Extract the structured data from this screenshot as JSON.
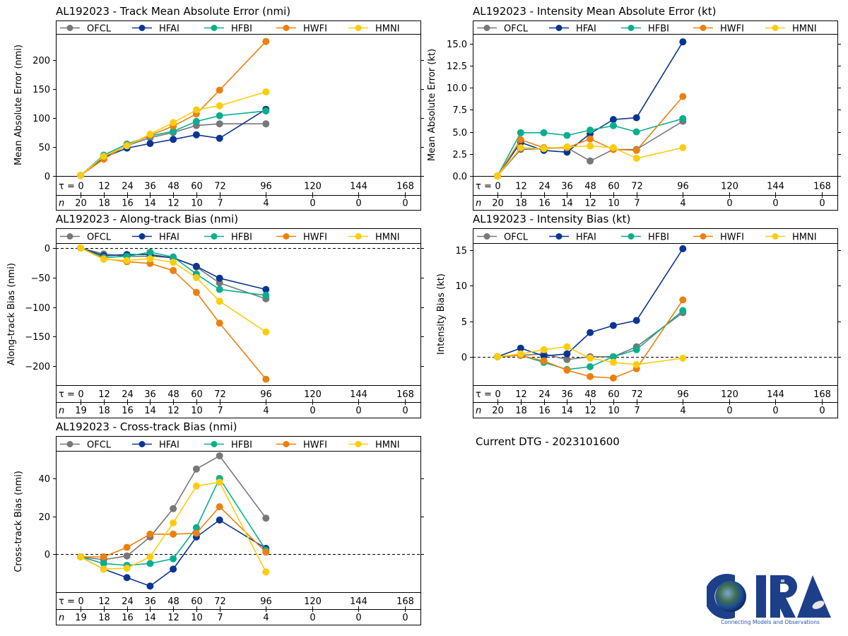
{
  "figure": {
    "current_dtg_label": "Current DTG - 2023101600",
    "logo": {
      "text": "CIRA",
      "tagline": "Connecting Models and Observations"
    }
  },
  "models": [
    {
      "name": "OFCL",
      "color": "#777777"
    },
    {
      "name": "HFAI",
      "color": "#0a3591"
    },
    {
      "name": "HFBI",
      "color": "#0aae8e"
    },
    {
      "name": "HWFI",
      "color": "#ec800f"
    },
    {
      "name": "HMNI",
      "color": "#fccd0f"
    }
  ],
  "chart_data": [
    {
      "id": "track-mae",
      "type": "line",
      "title": "AL192023 - Track Mean Absolute Error (nmi)",
      "xlabel": "τ",
      "ylabel": "Mean Absolute Error (nmi)",
      "x": [
        0,
        12,
        24,
        36,
        48,
        60,
        72,
        96
      ],
      "x_ticks": [
        0,
        12,
        24,
        36,
        48,
        60,
        72,
        96,
        120,
        144,
        168
      ],
      "n_row": [
        "20",
        "18",
        "16",
        "14",
        "12",
        "10",
        "7",
        "4",
        "0",
        "0",
        "0"
      ],
      "y_ticks": [
        0,
        50,
        100,
        150,
        200
      ],
      "y_tick_labels": [
        "0",
        "50",
        "100",
        "150",
        "200"
      ],
      "ylim": [
        0,
        245
      ],
      "zero_line": false,
      "legend": "top",
      "series": [
        {
          "name": "OFCL",
          "values": [
            1,
            33,
            52,
            66,
            75,
            87,
            90,
            90
          ]
        },
        {
          "name": "HFAI",
          "values": [
            1,
            32,
            48,
            56,
            63,
            71,
            65,
            115
          ]
        },
        {
          "name": "HFBI",
          "values": [
            1,
            36,
            55,
            69,
            77,
            94,
            104,
            112
          ]
        },
        {
          "name": "HWFI",
          "values": [
            1,
            29,
            53,
            70,
            86,
            107,
            148,
            232
          ]
        },
        {
          "name": "HMNI",
          "values": [
            1,
            34,
            52,
            72,
            92,
            114,
            121,
            145
          ]
        }
      ]
    },
    {
      "id": "intensity-mae",
      "type": "line",
      "title": "AL192023 - Intensity Mean Absolute Error (kt)",
      "xlabel": "τ",
      "ylabel": "Mean Absolute Error (kt)",
      "x": [
        0,
        12,
        24,
        36,
        48,
        60,
        72,
        96
      ],
      "x_ticks": [
        0,
        12,
        24,
        36,
        48,
        60,
        72,
        96,
        120,
        144,
        168
      ],
      "n_row": [
        "20",
        "18",
        "16",
        "14",
        "12",
        "10",
        "7",
        "4",
        "0",
        "0",
        "0"
      ],
      "y_ticks": [
        0,
        2.5,
        5,
        7.5,
        10,
        12.5,
        15
      ],
      "y_tick_labels": [
        "0.0",
        "2.5",
        "5.0",
        "7.5",
        "10.0",
        "12.5",
        "15.0"
      ],
      "ylim": [
        0,
        16.1
      ],
      "zero_line": false,
      "legend": "top",
      "series": [
        {
          "name": "OFCL",
          "values": [
            0,
            3.0,
            3.1,
            3.2,
            1.7,
            3.0,
            3.0,
            6.2
          ]
        },
        {
          "name": "HFAI",
          "values": [
            0,
            3.8,
            2.9,
            2.7,
            4.8,
            6.4,
            6.6,
            15.2
          ]
        },
        {
          "name": "HFBI",
          "values": [
            0,
            4.9,
            4.9,
            4.6,
            5.2,
            5.7,
            5.0,
            6.5
          ]
        },
        {
          "name": "HWFI",
          "values": [
            0,
            4.1,
            3.2,
            3.2,
            4.2,
            3.0,
            2.9,
            9.0
          ]
        },
        {
          "name": "HMNI",
          "values": [
            0,
            3.2,
            3.1,
            3.3,
            3.4,
            3.2,
            2.0,
            3.2
          ]
        }
      ]
    },
    {
      "id": "along-track-bias",
      "type": "line",
      "title": "AL192023 - Along-track Bias (nmi)",
      "xlabel": "τ",
      "ylabel": "Along-track Bias (nmi)",
      "x": [
        0,
        12,
        24,
        36,
        48,
        60,
        72,
        96
      ],
      "x_ticks": [
        0,
        12,
        24,
        36,
        48,
        60,
        72,
        96,
        120,
        144,
        168
      ],
      "n_row": [
        "19",
        "18",
        "16",
        "14",
        "12",
        "10",
        "7",
        "4",
        "0",
        "0",
        "0"
      ],
      "y_ticks": [
        -200,
        -150,
        -100,
        -50,
        0
      ],
      "y_tick_labels": [
        "−200",
        "−150",
        "−100",
        "−50",
        "0"
      ],
      "ylim": [
        -232,
        8.4
      ],
      "zero_line": true,
      "legend": "top",
      "series": [
        {
          "name": "OFCL",
          "values": [
            0,
            -10,
            -14,
            -14,
            -16,
            -32,
            -59,
            -86
          ]
        },
        {
          "name": "HFAI",
          "values": [
            0,
            -13,
            -11,
            -11,
            -17,
            -31,
            -51,
            -70
          ]
        },
        {
          "name": "HFBI",
          "values": [
            0,
            -16,
            -14,
            -7,
            -15,
            -44,
            -70,
            -80
          ]
        },
        {
          "name": "HWFI",
          "values": [
            0,
            -18,
            -23,
            -26,
            -38,
            -75,
            -127,
            -222
          ]
        },
        {
          "name": "HMNI",
          "values": [
            0,
            -19,
            -21,
            -18,
            -24,
            -50,
            -90,
            -142
          ]
        }
      ]
    },
    {
      "id": "intensity-bias",
      "type": "line",
      "title": "AL192023 - Intensity Bias (kt)",
      "xlabel": "τ",
      "ylabel": "Intensity Bias (kt)",
      "x": [
        0,
        12,
        24,
        36,
        48,
        60,
        72,
        96
      ],
      "x_ticks": [
        0,
        12,
        24,
        36,
        48,
        60,
        72,
        96,
        120,
        144,
        168
      ],
      "n_row": [
        "20",
        "18",
        "16",
        "14",
        "12",
        "10",
        "7",
        "4",
        "0",
        "0",
        "0"
      ],
      "y_ticks": [
        0,
        5,
        10,
        15
      ],
      "y_tick_labels": [
        "0",
        "5",
        "10",
        "15"
      ],
      "ylim": [
        -4,
        16
      ],
      "zero_line": true,
      "legend": "top",
      "series": [
        {
          "name": "OFCL",
          "values": [
            0,
            0.2,
            0.4,
            -0.4,
            0.0,
            0.0,
            1.4,
            6.2
          ]
        },
        {
          "name": "HFAI",
          "values": [
            0,
            1.2,
            0.1,
            0.4,
            3.4,
            4.4,
            5.1,
            15.2
          ]
        },
        {
          "name": "HFBI",
          "values": [
            0,
            0.2,
            -0.8,
            -1.8,
            -1.4,
            0.0,
            1.0,
            6.5
          ]
        },
        {
          "name": "HWFI",
          "values": [
            0,
            0.2,
            -0.6,
            -1.9,
            -2.8,
            -3.0,
            -1.7,
            8.0
          ]
        },
        {
          "name": "HMNI",
          "values": [
            0,
            0.4,
            1.0,
            1.4,
            -0.2,
            -0.8,
            -1.1,
            -0.2
          ]
        }
      ]
    },
    {
      "id": "cross-track-bias",
      "type": "line",
      "title": "AL192023 - Cross-track Bias (nmi)",
      "xlabel": "τ",
      "ylabel": "Cross-track Bias (nmi)",
      "x": [
        0,
        12,
        24,
        36,
        48,
        60,
        72,
        96
      ],
      "x_ticks": [
        0,
        12,
        24,
        36,
        48,
        60,
        72,
        96,
        120,
        144,
        168
      ],
      "n_row": [
        "19",
        "18",
        "16",
        "14",
        "12",
        "10",
        "7",
        "4",
        "0",
        "0",
        "0"
      ],
      "y_ticks": [
        0,
        20,
        40
      ],
      "y_tick_labels": [
        "0",
        "20",
        "40"
      ],
      "ylim": [
        -20.2,
        54.6
      ],
      "zero_line": true,
      "legend": "top",
      "series": [
        {
          "name": "OFCL",
          "values": [
            -1.5,
            -3,
            -1,
            9,
            24,
            45,
            52,
            19
          ]
        },
        {
          "name": "HFAI",
          "values": [
            -1.5,
            -8,
            -12.5,
            -17,
            -8,
            9,
            18,
            3
          ]
        },
        {
          "name": "HFBI",
          "values": [
            -1.5,
            -5,
            -6,
            -5,
            -2.5,
            14,
            40,
            2
          ]
        },
        {
          "name": "HWFI",
          "values": [
            -1.5,
            -1.5,
            3.5,
            10.5,
            10.5,
            11,
            25,
            1
          ]
        },
        {
          "name": "HMNI",
          "values": [
            -1.5,
            -8,
            -7.5,
            -1.5,
            16.5,
            36,
            38,
            -9.5
          ]
        }
      ]
    }
  ]
}
